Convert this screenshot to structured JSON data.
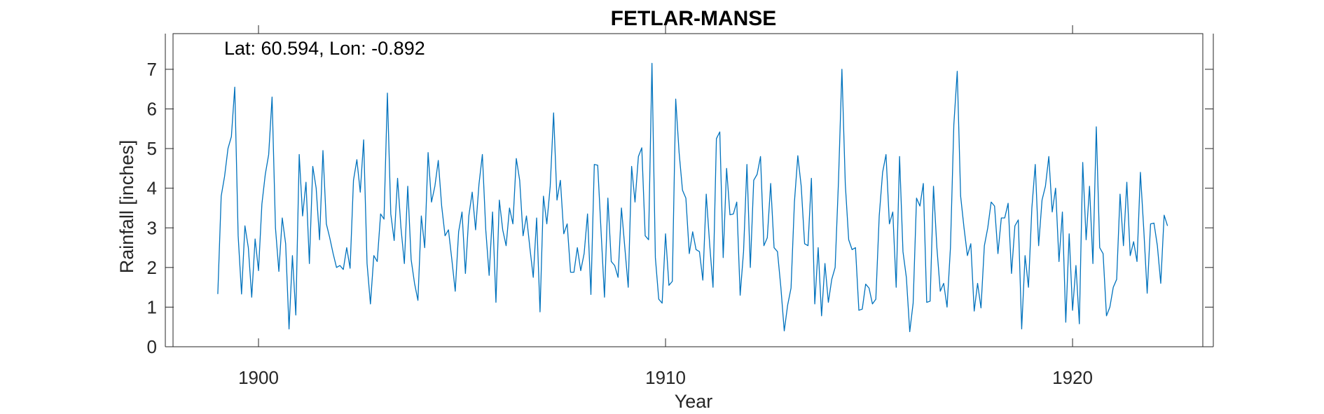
{
  "chart_data": {
    "type": "line",
    "title": "FETLAR-MANSE",
    "xlabel": "Year",
    "ylabel": "Rainfall [inches]",
    "annotation": "Lat: 60.594, Lon: -0.892",
    "xlim": [
      1897.9,
      1923.2
    ],
    "ylim": [
      0,
      7.9
    ],
    "xticks": [
      1900,
      1910,
      1920
    ],
    "xtick_labels": [
      "1900",
      "1910",
      "1920"
    ],
    "yticks": [
      0,
      1,
      2,
      3,
      4,
      5,
      6,
      7
    ],
    "ytick_labels": [
      "0",
      "1",
      "2",
      "3",
      "4",
      "5",
      "6",
      "7"
    ],
    "grid": false,
    "series_color": "#0072BD",
    "series": [
      {
        "name": "",
        "start_year": 1899,
        "start_month": 1,
        "values": [
          1.33,
          3.8,
          4.3,
          5.0,
          5.3,
          6.55,
          2.8,
          1.33,
          3.05,
          2.5,
          1.25,
          2.72,
          1.92,
          3.6,
          4.35,
          4.85,
          6.3,
          3.0,
          1.9,
          3.25,
          2.6,
          0.45,
          2.3,
          0.8,
          4.85,
          3.3,
          4.15,
          2.1,
          4.55,
          4.0,
          2.7,
          4.95,
          3.1,
          2.75,
          2.35,
          2.0,
          2.05,
          1.95,
          2.5,
          1.98,
          4.2,
          4.72,
          3.9,
          5.22,
          2.1,
          1.08,
          2.3,
          2.15,
          3.35,
          3.22,
          6.4,
          3.35,
          2.68,
          4.25,
          3.0,
          2.1,
          4.05,
          2.2,
          1.6,
          1.17,
          3.3,
          2.5,
          4.9,
          3.65,
          4.05,
          4.7,
          3.55,
          2.8,
          2.95,
          2.2,
          1.4,
          2.9,
          3.4,
          1.85,
          3.3,
          3.9,
          2.95,
          4.1,
          4.85,
          2.95,
          1.8,
          3.4,
          1.12,
          3.7,
          2.95,
          2.55,
          3.5,
          3.1,
          4.75,
          4.2,
          2.8,
          3.3,
          2.5,
          1.75,
          3.25,
          0.88,
          3.8,
          3.1,
          4.05,
          5.9,
          3.7,
          4.2,
          2.85,
          3.1,
          1.88,
          1.88,
          2.5,
          1.92,
          2.35,
          3.35,
          1.32,
          4.6,
          4.58,
          2.9,
          1.25,
          3.75,
          2.15,
          2.05,
          1.75,
          3.5,
          2.5,
          1.5,
          4.55,
          3.65,
          4.8,
          5.02,
          2.8,
          2.7,
          7.15,
          2.25,
          1.2,
          1.1,
          2.85,
          1.55,
          1.65,
          6.25,
          4.9,
          3.95,
          3.75,
          2.35,
          2.9,
          2.45,
          2.4,
          1.68,
          3.85,
          2.6,
          1.5,
          5.25,
          5.42,
          2.25,
          4.5,
          3.33,
          3.35,
          3.65,
          1.3,
          2.4,
          4.6,
          2.0,
          4.2,
          4.35,
          4.8,
          2.55,
          2.75,
          4.12,
          2.5,
          2.4,
          1.5,
          0.4,
          1.05,
          1.48,
          3.65,
          4.82,
          4.05,
          2.6,
          2.55,
          4.25,
          1.08,
          2.5,
          0.78,
          2.1,
          1.12,
          1.7,
          2.0,
          4.2,
          7.0,
          4.1,
          2.7,
          2.45,
          2.5,
          0.92,
          0.95,
          1.58,
          1.48,
          1.08,
          1.2,
          3.3,
          4.4,
          4.85,
          3.1,
          3.4,
          1.5,
          4.8,
          2.4,
          1.75,
          0.38,
          1.1,
          3.75,
          3.55,
          4.12,
          1.12,
          1.15,
          4.05,
          2.5,
          1.4,
          1.6,
          1.0,
          2.5,
          5.6,
          6.95,
          3.8,
          3.0,
          2.3,
          2.6,
          0.9,
          1.6,
          0.98,
          2.55,
          3.0,
          3.65,
          3.55,
          2.35,
          3.25,
          3.25,
          3.62,
          1.85,
          3.05,
          3.2,
          0.45,
          2.3,
          1.5,
          3.5,
          4.6,
          2.55,
          3.7,
          4.05,
          4.8,
          3.4,
          4.0,
          2.15,
          3.4,
          0.62,
          2.85,
          0.92,
          2.05,
          0.58,
          4.65,
          2.7,
          4.05,
          2.1,
          5.55,
          2.5,
          2.35,
          0.78,
          1.0,
          1.5,
          1.7,
          3.85,
          2.55,
          4.15,
          2.3,
          2.65,
          2.15,
          4.4,
          2.95,
          1.35,
          3.1,
          3.12,
          2.55,
          1.6,
          3.32,
          3.05
        ]
      }
    ]
  }
}
